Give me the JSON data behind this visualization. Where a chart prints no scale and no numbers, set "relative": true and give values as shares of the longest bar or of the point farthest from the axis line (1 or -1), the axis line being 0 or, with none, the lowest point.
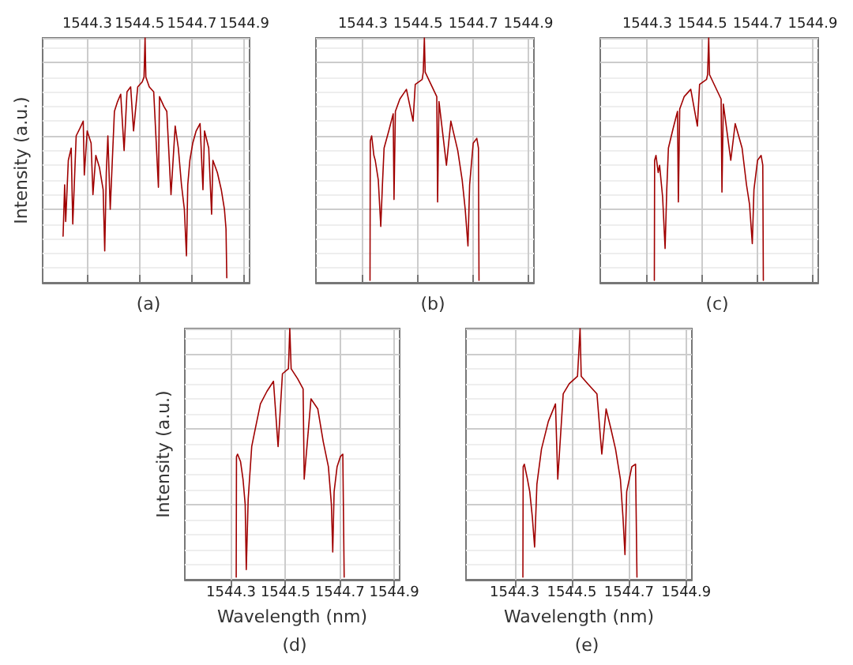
{
  "chart_data": [
    {
      "type": "line",
      "title": "(a)",
      "ylabel": "Intensity (a.u.)",
      "relative": true,
      "grid": true,
      "color": "#a00000",
      "xlim": [
        1544.13,
        1544.92
      ],
      "xticks": [
        1544.3,
        1544.5,
        1544.7,
        1544.9
      ],
      "x": [
        1544.208,
        1544.214,
        1544.218,
        1544.228,
        1544.239,
        1544.245,
        1544.258,
        1544.272,
        1544.285,
        1544.289,
        1544.3,
        1544.315,
        1544.322,
        1544.333,
        1544.347,
        1544.361,
        1544.367,
        1544.373,
        1544.379,
        1544.388,
        1544.404,
        1544.416,
        1544.428,
        1544.441,
        1544.452,
        1544.466,
        1544.477,
        1544.493,
        1544.51,
        1544.517,
        1544.521,
        1544.524,
        1544.537,
        1544.554,
        1544.572,
        1544.576,
        1544.593,
        1544.604,
        1544.62,
        1544.636,
        1544.648,
        1544.66,
        1544.671,
        1544.679,
        1544.684,
        1544.692,
        1544.703,
        1544.716,
        1544.731,
        1544.742,
        1544.748,
        1544.764,
        1544.775,
        1544.78,
        1544.797,
        1544.812,
        1544.824,
        1544.83,
        1544.833
      ],
      "values": [
        0.19,
        0.4,
        0.25,
        0.5,
        0.55,
        0.24,
        0.6,
        0.63,
        0.66,
        0.44,
        0.62,
        0.57,
        0.36,
        0.52,
        0.47,
        0.38,
        0.13,
        0.45,
        0.6,
        0.3,
        0.7,
        0.74,
        0.77,
        0.54,
        0.78,
        0.8,
        0.62,
        0.8,
        0.82,
        0.84,
        1,
        0.84,
        0.8,
        0.78,
        0.39,
        0.76,
        0.72,
        0.7,
        0.36,
        0.64,
        0.55,
        0.4,
        0.3,
        0.11,
        0.4,
        0.5,
        0.57,
        0.62,
        0.65,
        0.38,
        0.62,
        0.55,
        0.28,
        0.5,
        0.45,
        0.38,
        0.3,
        0.22,
        0.02
      ]
    },
    {
      "type": "line",
      "title": "(b)",
      "relative": true,
      "grid": true,
      "color": "#a00000",
      "xlim": [
        1544.13,
        1544.92
      ],
      "xticks": [
        1544.3,
        1544.5,
        1544.7,
        1544.9
      ],
      "x": [
        1544.326,
        1544.327,
        1544.332,
        1544.34,
        1544.345,
        1544.356,
        1544.365,
        1544.371,
        1544.377,
        1544.394,
        1544.41,
        1544.413,
        1544.418,
        1544.434,
        1544.458,
        1544.482,
        1544.49,
        1544.515,
        1544.519,
        1544.523,
        1544.526,
        1544.547,
        1544.568,
        1544.571,
        1544.576,
        1544.603,
        1544.619,
        1544.644,
        1544.66,
        1544.671,
        1544.681,
        1544.687,
        1544.7,
        1544.713,
        1544.719,
        1544.721
      ],
      "values": [
        0.01,
        0.58,
        0.6,
        0.52,
        0.5,
        0.42,
        0.23,
        0.4,
        0.55,
        0.62,
        0.69,
        0.34,
        0.7,
        0.75,
        0.79,
        0.66,
        0.81,
        0.83,
        0.86,
        1.0,
        0.86,
        0.81,
        0.76,
        0.33,
        0.74,
        0.48,
        0.66,
        0.54,
        0.42,
        0.3,
        0.15,
        0.4,
        0.57,
        0.59,
        0.55,
        0.01
      ]
    },
    {
      "type": "line",
      "title": "(c)",
      "relative": true,
      "grid": true,
      "color": "#a00000",
      "xlim": [
        1544.13,
        1544.92
      ],
      "xticks": [
        1544.3,
        1544.5,
        1544.7,
        1544.9
      ],
      "x": [
        1544.326,
        1544.327,
        1544.332,
        1544.34,
        1544.345,
        1544.356,
        1544.365,
        1544.371,
        1544.377,
        1544.394,
        1544.41,
        1544.413,
        1544.418,
        1544.434,
        1544.458,
        1544.482,
        1544.49,
        1544.515,
        1544.519,
        1544.523,
        1544.526,
        1544.547,
        1544.568,
        1544.571,
        1544.576,
        1544.603,
        1544.619,
        1544.644,
        1544.66,
        1544.671,
        1544.681,
        1544.687,
        1544.7,
        1544.713,
        1544.719,
        1544.721
      ],
      "values": [
        0.01,
        0.5,
        0.52,
        0.45,
        0.48,
        0.35,
        0.14,
        0.38,
        0.55,
        0.63,
        0.7,
        0.33,
        0.71,
        0.76,
        0.79,
        0.64,
        0.81,
        0.83,
        0.85,
        1.0,
        0.85,
        0.8,
        0.75,
        0.37,
        0.73,
        0.5,
        0.65,
        0.55,
        0.4,
        0.32,
        0.16,
        0.38,
        0.5,
        0.52,
        0.48,
        0.01
      ]
    },
    {
      "type": "line",
      "title": "(d)",
      "xlabel": "Wavelength (nm)",
      "ylabel": "Intensity (a.u.)",
      "relative": true,
      "grid": true,
      "color": "#a00000",
      "xlim": [
        1544.13,
        1544.92
      ],
      "xticks": [
        1544.3,
        1544.5,
        1544.7,
        1544.9
      ],
      "x": [
        1544.319,
        1544.32,
        1544.324,
        1544.335,
        1544.344,
        1544.352,
        1544.356,
        1544.363,
        1544.376,
        1544.389,
        1544.408,
        1544.432,
        1544.456,
        1544.473,
        1544.489,
        1544.511,
        1544.516,
        1544.521,
        1544.545,
        1544.565,
        1544.569,
        1544.594,
        1544.619,
        1544.639,
        1544.658,
        1544.669,
        1544.674,
        1544.679,
        1544.69,
        1544.702,
        1544.711,
        1544.716
      ],
      "values": [
        0.01,
        0.49,
        0.5,
        0.47,
        0.4,
        0.3,
        0.04,
        0.32,
        0.53,
        0.6,
        0.7,
        0.75,
        0.79,
        0.53,
        0.82,
        0.84,
        1.0,
        0.84,
        0.8,
        0.76,
        0.4,
        0.72,
        0.68,
        0.55,
        0.45,
        0.3,
        0.11,
        0.35,
        0.45,
        0.49,
        0.5,
        0.01
      ]
    },
    {
      "type": "line",
      "title": "(e)",
      "xlabel": "Wavelength (nm)",
      "relative": true,
      "grid": true,
      "color": "#a00000",
      "xlim": [
        1544.13,
        1544.92
      ],
      "xticks": [
        1544.3,
        1544.5,
        1544.7,
        1544.9
      ],
      "x": [
        1544.329,
        1544.33,
        1544.334,
        1544.345,
        1544.353,
        1544.362,
        1544.37,
        1544.378,
        1544.394,
        1544.418,
        1544.443,
        1544.451,
        1544.47,
        1544.491,
        1544.52,
        1544.529,
        1544.533,
        1544.556,
        1544.588,
        1544.605,
        1544.62,
        1544.637,
        1544.653,
        1544.67,
        1544.679,
        1544.686,
        1544.692,
        1544.71,
        1544.723,
        1544.728
      ],
      "values": [
        0.01,
        0.45,
        0.46,
        0.4,
        0.35,
        0.25,
        0.13,
        0.38,
        0.52,
        0.63,
        0.7,
        0.4,
        0.74,
        0.78,
        0.81,
        1.0,
        0.81,
        0.78,
        0.74,
        0.5,
        0.68,
        0.6,
        0.52,
        0.4,
        0.25,
        0.1,
        0.35,
        0.45,
        0.46,
        0.01
      ]
    }
  ]
}
